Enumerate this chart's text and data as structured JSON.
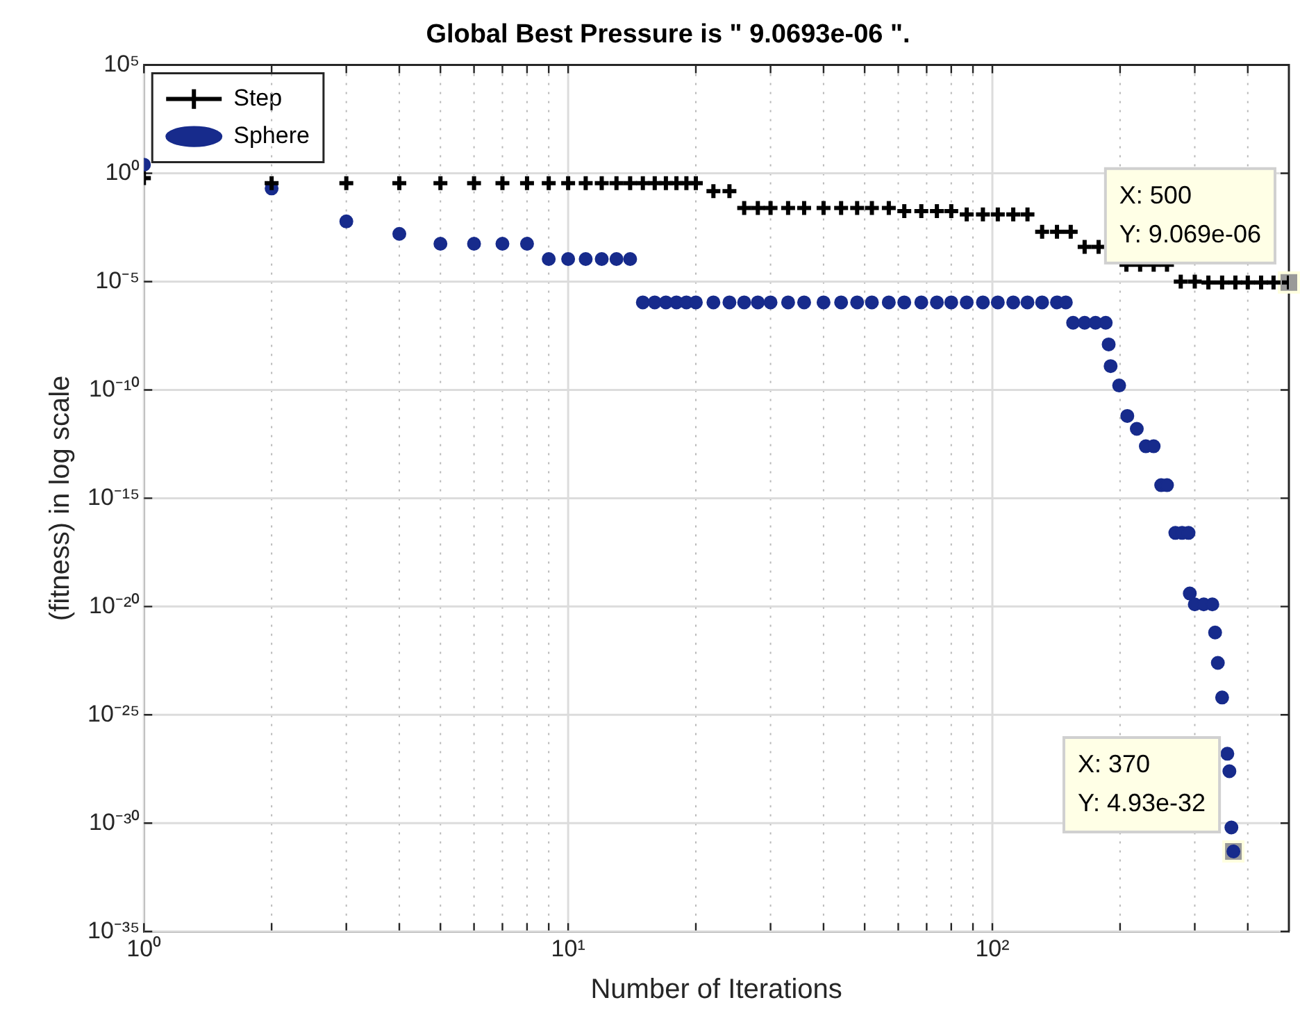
{
  "chart_data": {
    "type": "scatter",
    "title": "Global Best Pressure is \" 9.0693e-06 \".",
    "xlabel": "Number of Iterations",
    "ylabel": "(fitness) in log scale",
    "log": "xy",
    "grid": true,
    "legend": "top left",
    "xlim": [
      1,
      500
    ],
    "xticks": [
      {
        "value": 1,
        "label": "10⁰"
      },
      {
        "value": 2,
        "label": null
      },
      {
        "value": 3,
        "label": null
      },
      {
        "value": 4,
        "label": null
      },
      {
        "value": 5,
        "label": null
      },
      {
        "value": 6,
        "label": null
      },
      {
        "value": 7,
        "label": null
      },
      {
        "value": 8,
        "label": null
      },
      {
        "value": 9,
        "label": null
      },
      {
        "value": 10,
        "label": "10¹"
      },
      {
        "value": 20,
        "label": null
      },
      {
        "value": 30,
        "label": null
      },
      {
        "value": 40,
        "label": null
      },
      {
        "value": 50,
        "label": null
      },
      {
        "value": 60,
        "label": null
      },
      {
        "value": 70,
        "label": null
      },
      {
        "value": 80,
        "label": null
      },
      {
        "value": 90,
        "label": null
      },
      {
        "value": 100,
        "label": "10²"
      },
      {
        "value": 200,
        "label": null
      },
      {
        "value": 300,
        "label": null
      },
      {
        "value": 400,
        "label": null
      }
    ],
    "ylim": [
      1e-35,
      100000.0
    ],
    "yticks": [
      {
        "value": 100000.0,
        "label": "10⁵"
      },
      {
        "value": 1,
        "label": "10⁰"
      },
      {
        "value": 1e-05,
        "label": "10⁻⁵"
      },
      {
        "value": 1e-10,
        "label": "10⁻¹⁰"
      },
      {
        "value": 1e-15,
        "label": "10⁻¹⁵"
      },
      {
        "value": 1e-20,
        "label": "10⁻²⁰"
      },
      {
        "value": 1e-25,
        "label": "10⁻²⁵"
      },
      {
        "value": 1e-30,
        "label": "10⁻³⁰"
      },
      {
        "value": 1e-35,
        "label": "10⁻³⁵"
      }
    ],
    "series": [
      {
        "name": "Step",
        "color": "#000000",
        "marker": "cross",
        "x": [
          1,
          2,
          3,
          4,
          5,
          6,
          7,
          8,
          9,
          10,
          11,
          12,
          13,
          14,
          15,
          16,
          17,
          18,
          19,
          20,
          22,
          24,
          26,
          28,
          30,
          33,
          36,
          40,
          44,
          48,
          52,
          57,
          62,
          68,
          74,
          80,
          87,
          95,
          103,
          112,
          121,
          131,
          142,
          153,
          165,
          178,
          192,
          207,
          223,
          240,
          258,
          278,
          300,
          323,
          348,
          374,
          400,
          430,
          460,
          500
        ],
        "values": [
          0.6,
          0.35,
          0.35,
          0.35,
          0.35,
          0.35,
          0.35,
          0.35,
          0.35,
          0.35,
          0.35,
          0.35,
          0.35,
          0.35,
          0.35,
          0.35,
          0.35,
          0.35,
          0.35,
          0.35,
          0.15,
          0.15,
          0.025,
          0.025,
          0.025,
          0.025,
          0.025,
          0.025,
          0.025,
          0.025,
          0.025,
          0.025,
          0.018,
          0.018,
          0.018,
          0.018,
          0.0126,
          0.0126,
          0.0126,
          0.0126,
          0.0126,
          0.002,
          0.002,
          0.002,
          0.0004,
          0.0004,
          null,
          6e-05,
          6e-05,
          6e-05,
          6e-05,
          1e-05,
          1e-05,
          9.069e-06,
          9.069e-06,
          9.069e-06,
          9.069e-06,
          9.069e-06,
          9.069e-06,
          9.069e-06
        ]
      },
      {
        "name": "Sphere",
        "color": "#172b8c",
        "marker": "circle",
        "x": [
          1,
          2,
          3,
          4,
          5,
          6,
          7,
          8,
          9,
          10,
          11,
          12,
          13,
          14,
          15,
          16,
          17,
          18,
          19,
          20,
          22,
          24,
          26,
          28,
          30,
          33,
          36,
          40,
          44,
          48,
          52,
          57,
          62,
          68,
          74,
          80,
          87,
          95,
          103,
          112,
          121,
          131,
          142,
          149,
          155,
          165,
          175,
          185,
          188,
          190,
          199,
          208,
          219,
          230,
          240,
          250,
          258,
          270,
          280,
          290,
          292,
          300,
          315,
          330,
          335,
          340,
          348,
          358,
          362,
          366,
          370
        ],
        "values": [
          2.5,
          0.2,
          0.006,
          0.0016,
          0.00056,
          0.00056,
          0.00056,
          0.00056,
          0.00011,
          0.00011,
          0.00011,
          0.00011,
          0.00011,
          0.00011,
          1.1e-06,
          1.1e-06,
          1.1e-06,
          1.1e-06,
          1.1e-06,
          1.1e-06,
          1.1e-06,
          1.1e-06,
          1.1e-06,
          1.1e-06,
          1.1e-06,
          1.1e-06,
          1.1e-06,
          1.1e-06,
          1.1e-06,
          1.1e-06,
          1.1e-06,
          1.1e-06,
          1.1e-06,
          1.1e-06,
          1.1e-06,
          1.1e-06,
          1.1e-06,
          1.1e-06,
          1.1e-06,
          1.1e-06,
          1.1e-06,
          1.1e-06,
          1.1e-06,
          1.1e-06,
          1.26e-07,
          1.26e-07,
          1.26e-07,
          1.26e-07,
          1.26e-08,
          1.26e-09,
          1.6e-10,
          6.3e-12,
          1.6e-12,
          2.5e-13,
          2.5e-13,
          4e-15,
          4e-15,
          2.5e-17,
          2.5e-17,
          2.5e-17,
          4e-20,
          1.26e-20,
          1.26e-20,
          1.26e-20,
          6.3e-22,
          2.5e-23,
          6.3e-25,
          1.6e-27,
          2.5e-28,
          6.3e-31,
          4.93e-32
        ]
      }
    ],
    "annotations": [
      {
        "text": "X: 500\nY: 9.069e-06",
        "x": 500,
        "y": 9.069e-06
      },
      {
        "text": "X: 370\nY: 4.93e-32",
        "x": 370,
        "y": 4.93e-32
      }
    ]
  }
}
